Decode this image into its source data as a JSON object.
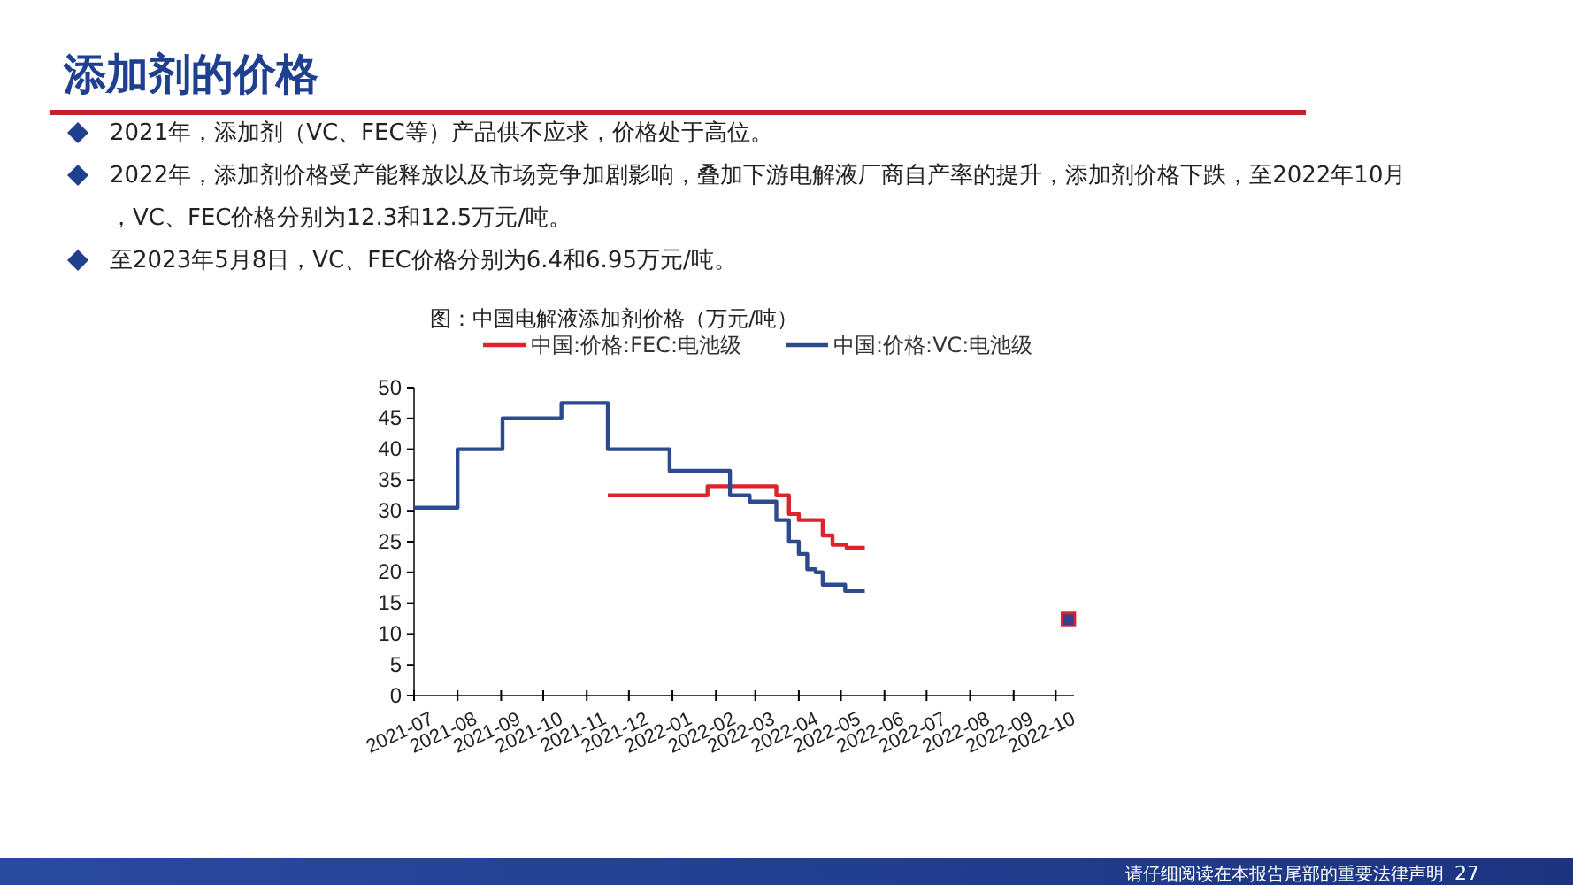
{
  "chart_data": {
    "type": "step",
    "title": "添加剂的价格",
    "subtitle": "图：中国电解液添加剂价格（万元/吨）",
    "annotations": [
      "2021年，添加剂（VC、FEC等）产品供不应求，价格处于高位。",
      "2022年，添加剂价格受产能释放以及市场竞争加剧影响，叠加下游电解液厂商自产率的提升，添加剂价格下跌，至2022年10月，VC、FEC价格分别为12.3和12.5万元/吨。",
      "至2023年5月8日，VC、FEC价格分别为6.4和6.95万元/吨。",
      "请仔细阅读在本报告尾部的重要法律声明",
      "27"
    ],
    "series": [
      {
        "name": "中国:价格:FEC:电池级",
        "color": "#d9252b",
        "x": [
          "2021-11-16",
          "2022-01-26",
          "2022-03-16",
          "2022-03-25",
          "2022-04-01",
          "2022-04-18",
          "2022-04-25",
          "2022-05-05",
          "2022-05-18"
        ],
        "values": [
          32.5,
          34,
          32.5,
          29.5,
          28.5,
          26,
          24.5,
          24,
          24
        ]
      },
      {
        "name": "中国:价格:VC:电池级",
        "color": "#2e4a8f",
        "x": [
          "2021-07-01",
          "2021-08-01",
          "2021-09-02",
          "2021-10-14",
          "2021-11-16",
          "2021-12-30",
          "2022-02-11",
          "2022-02-25",
          "2022-03-16",
          "2022-03-25",
          "2022-04-01",
          "2022-04-07",
          "2022-04-13",
          "2022-04-18",
          "2022-05-04",
          "2022-05-18"
        ],
        "values": [
          30.5,
          40,
          45,
          47.5,
          40,
          36.5,
          32.5,
          31.5,
          28.5,
          25,
          23,
          20.5,
          20,
          18,
          17,
          17
        ]
      },
      {
        "type": "scatter",
        "color": "#d9252b",
        "marker": "square",
        "x": [
          "2022-10-10"
        ],
        "values": [
          12.5
        ]
      },
      {
        "type": "scatter",
        "color": "#3b3f8a",
        "marker": "square",
        "x": [
          "2022-10-10"
        ],
        "values": [
          12.3
        ]
      }
    ],
    "xlim": [
      "2021-07-01",
      "2022-10-14"
    ],
    "xticks": [
      "2021-07",
      "2021-08",
      "2021-09",
      "2021-10",
      "2021-11",
      "2021-12",
      "2022-01",
      "2022-02",
      "2022-03",
      "2022-04",
      "2022-05",
      "2022-06",
      "2022-07",
      "2022-08",
      "2022-09",
      "2022-10"
    ],
    "ylim": [
      0,
      50
    ],
    "yticks": [
      0,
      5,
      10,
      15,
      20,
      25,
      30,
      35,
      40,
      45,
      50
    ],
    "legend": "top",
    "grid": false,
    "line_style": "solid",
    "marker": "none"
  }
}
